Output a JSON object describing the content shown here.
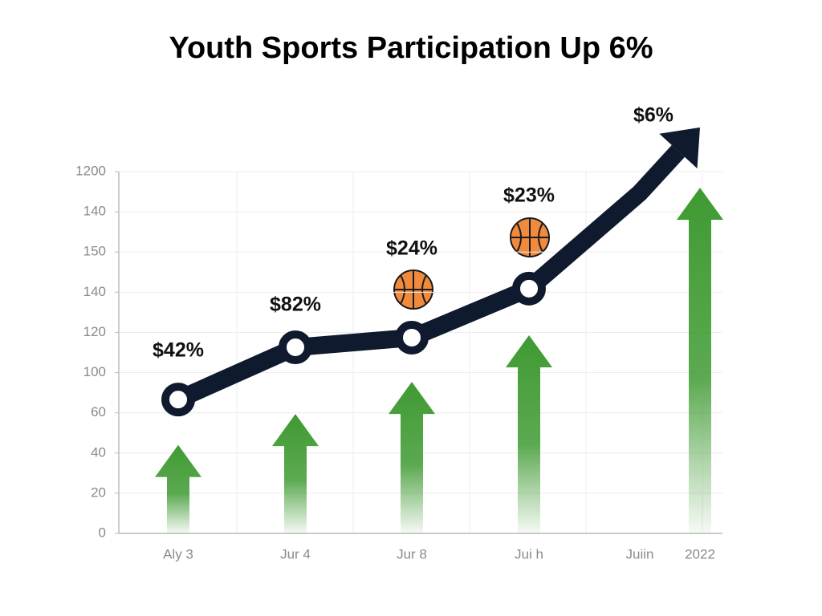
{
  "chart_data": {
    "type": "line",
    "title": "Youth Sports Participation Up 6%",
    "categories": [
      "Aly 3",
      "Jur 4",
      "Jur 8",
      "Jui h",
      "Juiin",
      "2022"
    ],
    "ylim": [
      0,
      9
    ],
    "yticks": [
      {
        "value": 0,
        "label": "0"
      },
      {
        "value": 1,
        "label": "20"
      },
      {
        "value": 2,
        "label": "40"
      },
      {
        "value": 3,
        "label": "60"
      },
      {
        "value": 4,
        "label": "100"
      },
      {
        "value": 5,
        "label": "120"
      },
      {
        "value": 6,
        "label": "140"
      },
      {
        "value": 7,
        "label": "150"
      },
      {
        "value": 8,
        "label": "140"
      },
      {
        "value": 9,
        "label": "1200"
      }
    ],
    "grid": true,
    "series": [
      {
        "color": "#0f1a2e",
        "values": [
          3.33,
          4.63,
          4.87,
          6.09,
          8.47,
          10.1
        ]
      },
      {
        "color": "#3f9a32",
        "values": [
          2.2,
          2.97,
          3.77,
          4.93,
          null,
          8.6
        ]
      }
    ],
    "annotations": [
      "$42%",
      "$82%",
      "$24%",
      "$23%",
      null,
      "$6%"
    ]
  }
}
